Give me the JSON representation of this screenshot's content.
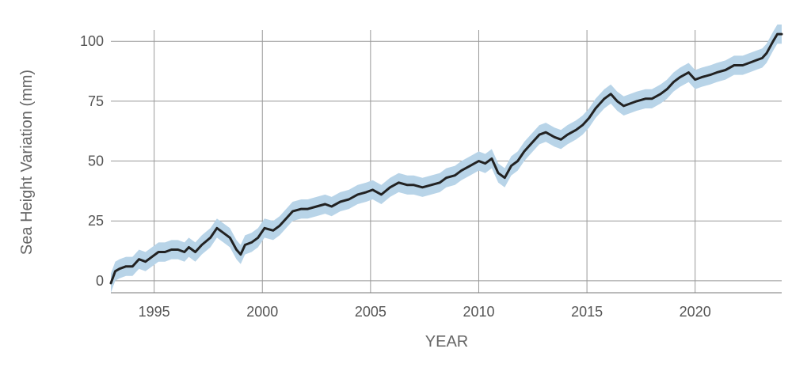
{
  "chart_data": {
    "type": "line",
    "title": "",
    "xlabel": "YEAR",
    "ylabel": "Sea Height Variation (mm)",
    "xlim": [
      1993.0,
      2024.0
    ],
    "ylim": [
      -5,
      108
    ],
    "x_ticks": [
      1995,
      2000,
      2005,
      2010,
      2015,
      2020
    ],
    "x_tick_labels": [
      "1995",
      "2000",
      "2005",
      "2010",
      "2015",
      "2020"
    ],
    "y_ticks": [
      0,
      25,
      50,
      75,
      100
    ],
    "y_tick_labels": [
      "0",
      "25",
      "50",
      "75",
      "100"
    ],
    "grid": true,
    "legend": "none",
    "colors": {
      "line": "#222222",
      "band": "#b8d4e8"
    },
    "band_halfwidth": 4,
    "series": [
      {
        "x": [
          1993.0,
          1993.2,
          1993.4,
          1993.7,
          1994.0,
          1994.3,
          1994.6,
          1994.9,
          1995.2,
          1995.5,
          1995.8,
          1996.1,
          1996.4,
          1996.6,
          1996.9,
          1997.2,
          1997.6,
          1997.9,
          1998.2,
          1998.5,
          1998.8,
          1999.0,
          1999.2,
          1999.5,
          1999.8,
          2000.1,
          2000.5,
          2000.8,
          2001.1,
          2001.4,
          2001.8,
          2002.1,
          2002.5,
          2002.9,
          2003.2,
          2003.6,
          2004.0,
          2004.4,
          2004.8,
          2005.1,
          2005.5,
          2005.9,
          2006.3,
          2006.7,
          2007.0,
          2007.4,
          2007.8,
          2008.2,
          2008.5,
          2008.9,
          2009.2,
          2009.6,
          2010.0,
          2010.3,
          2010.6,
          2010.9,
          2011.2,
          2011.5,
          2011.8,
          2012.1,
          2012.5,
          2012.8,
          2013.1,
          2013.5,
          2013.8,
          2014.1,
          2014.5,
          2014.8,
          2015.1,
          2015.4,
          2015.8,
          2016.1,
          2016.4,
          2016.7,
          2017.0,
          2017.3,
          2017.7,
          2018.0,
          2018.4,
          2018.7,
          2019.0,
          2019.3,
          2019.7,
          2020.0,
          2020.3,
          2020.7,
          2021.0,
          2021.4,
          2021.8,
          2022.2,
          2022.5,
          2022.8,
          2023.1,
          2023.3,
          2023.6,
          2023.8,
          2024.0
        ],
        "y": [
          -1,
          4,
          5,
          6,
          6,
          9,
          8,
          10,
          12,
          12,
          13,
          13,
          12,
          14,
          12,
          15,
          18,
          22,
          20,
          18,
          13,
          11,
          15,
          16,
          18,
          22,
          21,
          23,
          26,
          29,
          30,
          30,
          31,
          32,
          31,
          33,
          34,
          36,
          37,
          38,
          36,
          39,
          41,
          40,
          40,
          39,
          40,
          41,
          43,
          44,
          46,
          48,
          50,
          49,
          51,
          45,
          43,
          48,
          50,
          54,
          58,
          61,
          62,
          60,
          59,
          61,
          63,
          65,
          68,
          72,
          76,
          78,
          75,
          73,
          74,
          75,
          76,
          76,
          78,
          80,
          83,
          85,
          87,
          84,
          85,
          86,
          87,
          88,
          90,
          90,
          91,
          92,
          93,
          95,
          100,
          103,
          103
        ]
      }
    ]
  }
}
